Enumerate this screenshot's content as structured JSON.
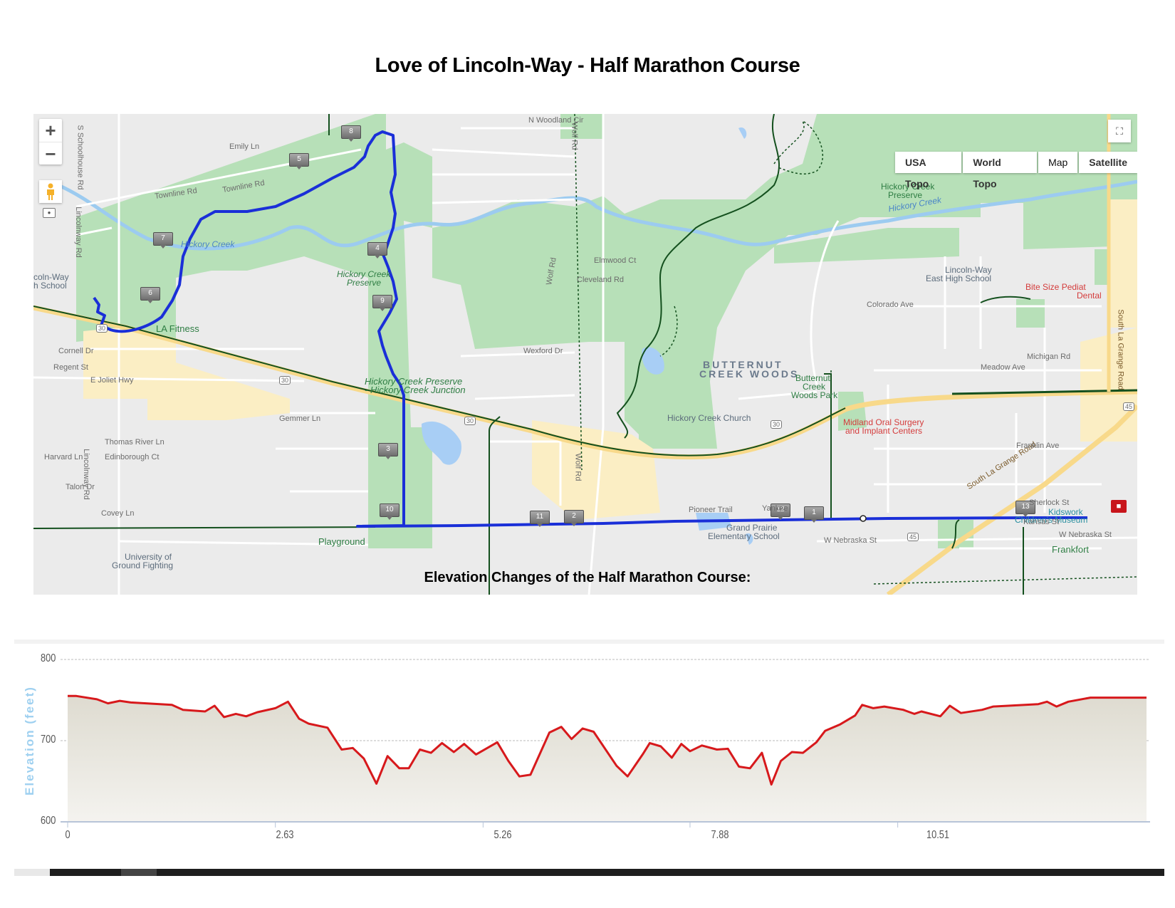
{
  "page": {
    "title": "Love of Lincoln-Way - Half Marathon Course",
    "elevation_heading": "Elevation Changes of the Half Marathon Course:"
  },
  "map": {
    "controls": {
      "zoom_in": "+",
      "zoom_out": "−",
      "fullscreen_icon": "⛶"
    },
    "basemap_tabs": [
      {
        "label": "USA Topo",
        "active": true
      },
      {
        "label": "World Topo",
        "active": false
      },
      {
        "label": "Map",
        "active": false
      },
      {
        "label": "Satellite",
        "active": false
      }
    ],
    "mile_markers": [
      "1",
      "2",
      "3",
      "4",
      "5",
      "6",
      "7",
      "8",
      "9",
      "10",
      "11",
      "12",
      "13"
    ],
    "labels": {
      "hickory_creek_1": "Hickory Creek",
      "hickory_creek_2": "Hickory Creek",
      "hickory_creek_preserve_1": "Hickory Creek",
      "hickory_creek_preserve_1b": "Preserve",
      "hickory_creek_preserve_2": "Hickory Creek",
      "hickory_creek_preserve_2b": "Preserve",
      "hcp_junction_1": "Hickory Creek Preserve",
      "hcp_junction_2": "- Hickory Creek Junction",
      "la_fitness": "LA Fitness",
      "lw_high_school_a": "coln-Way",
      "lw_high_school_b": "h School",
      "lw_east_a": "Lincoln-Way",
      "lw_east_b": "East High School",
      "bite_size_a": "Bite Size Pediat",
      "bite_size_b": "Dental",
      "butternut_a": "BUTTERNUT",
      "butternut_b": "CREEK WOODS",
      "butternut_park_a": "Butternut",
      "butternut_park_b": "Creek",
      "butternut_park_c": "Woods Park",
      "hickory_creek_church": "Hickory Creek Church",
      "midland_a": "Midland Oral Surgery",
      "midland_b": "and Implant Centers",
      "grand_prairie_a": "Grand Prairie",
      "grand_prairie_b": "Elementary School",
      "playground": "Playground",
      "university_a": "University of",
      "university_b": "Ground Fighting",
      "kidswork_a": "Kidswork",
      "kidswork_b": "Children's Museum",
      "frankfort": "Frankfort",
      "south_la_grange": "South La Grange Road",
      "south_la_grange_vert": "South La Grange Road",
      "townline_rd_1": "Townline Rd",
      "townline_rd_2": "Townline Rd",
      "schoolhouse_rd": "S Schoolhouse Rd",
      "lincolnway_rd_1": "Lincolnway Rd",
      "lincolnway_rd_2": "Lincolnway Rd",
      "wolf_rd_1": "Wolf Rd",
      "wolf_rd_2": "Wolf Rd",
      "wolf_rd_3": "Wolf Rd",
      "e_joliet_hwy": "E Joliet Hwy",
      "w_nebraska_st": "W Nebraska St",
      "w_nebraska_st_2": "W Nebraska St",
      "pioneer_trail": "Pioneer Trail",
      "wexford_dr": "Wexford Dr",
      "emily_ln": "Emily Ln",
      "gemmer_ln": "Gemmer Ln",
      "cornell_dr": "Cornell Dr",
      "regent_st": "Regent St",
      "harvard_ln": "Harvard Ln",
      "talon_dr": "Talon Dr",
      "covey_ln": "Covey Ln",
      "thomas_river": "Thomas River Ln",
      "edinborough": "Edinborough Ct",
      "wedgewood": "N Woodland Cir",
      "elmwood": "Elmwood Ct",
      "cleveland": "Cleveland Rd",
      "yankee": "Yankee",
      "sherlock": "Sherlock St",
      "kansas": "Kansas St",
      "colorado": "Colorado Ave",
      "franklin_ave": "Franklin Ave",
      "meadow_ave": "Meadow Ave",
      "michigan": "Michigan Rd",
      "route_30": "30",
      "route_45": "45"
    }
  },
  "chart_data": {
    "type": "area",
    "title": "Elevation Changes of the Half Marathon Course:",
    "xlabel": "",
    "ylabel": "Elevation (feet)",
    "ylim": [
      600,
      800
    ],
    "xlim": [
      0,
      13.66
    ],
    "yticks": [
      "800",
      "700",
      "600"
    ],
    "xticks": [
      "0",
      "2.63",
      "5.26",
      "7.88",
      "10.51"
    ],
    "grid": "horizontal dashed",
    "line_color": "#d7191c",
    "fill_color": "#e4e2d8",
    "x": [
      0,
      0.11,
      0.37,
      0.51,
      0.66,
      0.8,
      1.32,
      1.46,
      1.74,
      1.86,
      1.98,
      2.13,
      2.26,
      2.4,
      2.63,
      2.79,
      2.93,
      3.05,
      3.29,
      3.47,
      3.61,
      3.75,
      3.91,
      4.05,
      4.2,
      4.32,
      4.46,
      4.6,
      4.74,
      4.89,
      5.02,
      5.17,
      5.44,
      5.58,
      5.72,
      5.86,
      6.1,
      6.25,
      6.38,
      6.52,
      6.66,
      6.95,
      7.09,
      7.28,
      7.37,
      7.51,
      7.65,
      7.77,
      7.88,
      8.03,
      8.22,
      8.36,
      8.5,
      8.64,
      8.79,
      8.91,
      9.03,
      9.17,
      9.31,
      9.48,
      9.59,
      9.78,
      9.97,
      10.06,
      10.2,
      10.34,
      10.58,
      10.72,
      10.81,
      11.05,
      11.17,
      11.31,
      11.58,
      11.72,
      12.29,
      12.4,
      12.52,
      12.67,
      12.95,
      13.66
    ],
    "values": [
      755,
      755,
      751,
      746,
      749,
      747,
      744,
      738,
      736,
      743,
      729,
      733,
      730,
      735,
      740,
      748,
      727,
      721,
      716,
      689,
      691,
      678,
      647,
      681,
      666,
      666,
      689,
      685,
      697,
      686,
      696,
      683,
      698,
      675,
      656,
      658,
      710,
      717,
      702,
      715,
      711,
      669,
      656,
      683,
      697,
      693,
      679,
      696,
      687,
      694,
      689,
      690,
      668,
      666,
      685,
      646,
      675,
      686,
      685,
      698,
      712,
      720,
      731,
      744,
      740,
      742,
      738,
      733,
      736,
      730,
      743,
      734,
      738,
      742,
      745,
      748,
      742,
      748,
      753,
      753
    ],
    "units": {
      "x": "miles",
      "y": "feet"
    }
  },
  "elevation_axis": {
    "ytitle": "Elevation (feet)"
  }
}
